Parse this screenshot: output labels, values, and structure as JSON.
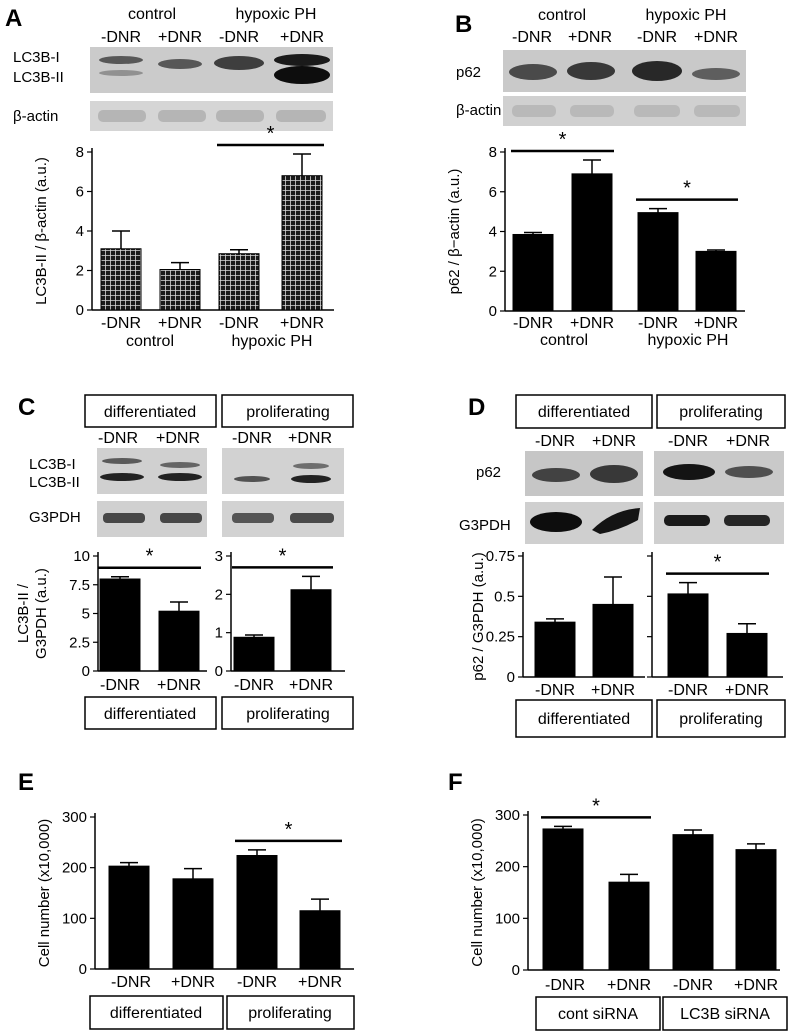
{
  "panels": {
    "A": {
      "letter": "A",
      "group_labels": [
        "control",
        "hypoxic PH"
      ],
      "conditions": [
        "-DNR",
        "+DNR",
        "-DNR",
        "+DNR"
      ],
      "blot_labels": [
        "LC3B-I",
        "LC3B-II",
        "β-actin"
      ],
      "significance": "*"
    },
    "B": {
      "letter": "B",
      "group_labels": [
        "control",
        "hypoxic PH"
      ],
      "conditions": [
        "-DNR",
        "+DNR",
        "-DNR",
        "+DNR"
      ],
      "blot_labels": [
        "p62",
        "β-actin"
      ],
      "significance": "*"
    },
    "C": {
      "letter": "C",
      "box_labels": [
        "differentiated",
        "proliferating"
      ],
      "conditions": [
        "-DNR",
        "+DNR",
        "-DNR",
        "+DNR"
      ],
      "blot_labels": [
        "LC3B-I",
        "LC3B-II",
        "G3PDH"
      ],
      "significance": "*"
    },
    "D": {
      "letter": "D",
      "box_labels": [
        "differentiated",
        "proliferating"
      ],
      "conditions": [
        "-DNR",
        "+DNR",
        "-DNR",
        "+DNR"
      ],
      "blot_labels": [
        "p62",
        "G3PDH"
      ],
      "significance": "*"
    },
    "E": {
      "letter": "E",
      "significance": "*"
    },
    "F": {
      "letter": "F",
      "significance": "*"
    }
  },
  "chart_data": [
    {
      "id": "A",
      "type": "bar",
      "pattern": "grid",
      "ylabel": "LC3B-II / β-actin (a.u.)",
      "yticks": [
        0,
        2,
        4,
        6,
        8
      ],
      "ylim": [
        0,
        8
      ],
      "categories": [
        "-DNR",
        "+DNR",
        "-DNR",
        "+DNR"
      ],
      "groups": [
        "control",
        "hypoxic PH"
      ],
      "values": [
        3.1,
        2.05,
        2.85,
        6.8
      ],
      "errors": [
        0.9,
        0.35,
        0.2,
        1.1
      ],
      "significance": [
        {
          "from": 2,
          "to": 3,
          "label": "*"
        }
      ]
    },
    {
      "id": "B",
      "type": "bar",
      "ylabel": "p62 / β−actin (a.u.)",
      "yticks": [
        0,
        2,
        4,
        6,
        8
      ],
      "ylim": [
        0,
        8
      ],
      "categories": [
        "-DNR",
        "+DNR",
        "-DNR",
        "+DNR"
      ],
      "groups": [
        "control",
        "hypoxic PH"
      ],
      "values": [
        3.85,
        6.9,
        4.95,
        3.0
      ],
      "errors": [
        0.1,
        0.7,
        0.2,
        0.07
      ],
      "significance": [
        {
          "from": 0,
          "to": 1,
          "label": "*"
        },
        {
          "from": 2,
          "to": 3,
          "label": "*"
        }
      ]
    },
    {
      "id": "C1",
      "type": "bar",
      "ylabel_lines": [
        "LC3B-II /",
        "G3PDH (a.u.)"
      ],
      "yticks": [
        0,
        2.5,
        5,
        7.5,
        10
      ],
      "ytick_labels": [
        "0",
        "2.5",
        "5",
        "7.5",
        "10"
      ],
      "ylim": [
        0,
        10
      ],
      "categories": [
        "-DNR",
        "+DNR"
      ],
      "group": "differentiated",
      "values": [
        8.0,
        5.2
      ],
      "errors": [
        0.2,
        0.8
      ],
      "significance": [
        {
          "from": 0,
          "to": 1,
          "label": "*"
        }
      ]
    },
    {
      "id": "C2",
      "type": "bar",
      "yticks": [
        0,
        1,
        2,
        3
      ],
      "ytick_labels": [
        "0",
        "1",
        "2",
        "3"
      ],
      "ylim": [
        0,
        3
      ],
      "categories": [
        "-DNR",
        "+DNR"
      ],
      "group": "proliferating",
      "values": [
        0.88,
        2.12
      ],
      "errors": [
        0.06,
        0.35
      ],
      "significance": [
        {
          "from": 0,
          "to": 1,
          "label": "*"
        }
      ]
    },
    {
      "id": "D1",
      "type": "bar",
      "ylabel": "p62 / G3PDH (a.u.)",
      "yticks": [
        0,
        0.25,
        0.5,
        0.75
      ],
      "ytick_labels": [
        "0",
        "0.25",
        "0.5",
        "0.75"
      ],
      "ylim": [
        0,
        0.75
      ],
      "categories": [
        "-DNR",
        "+DNR"
      ],
      "group": "differentiated",
      "values": [
        0.34,
        0.45
      ],
      "errors": [
        0.02,
        0.17
      ]
    },
    {
      "id": "D2",
      "type": "bar",
      "yticks": [
        0,
        0.25,
        0.5,
        0.75
      ],
      "ylim": [
        0,
        0.75
      ],
      "categories": [
        "-DNR",
        "+DNR"
      ],
      "group": "proliferating",
      "values": [
        0.515,
        0.27
      ],
      "errors": [
        0.07,
        0.06
      ],
      "significance": [
        {
          "from": 0,
          "to": 1,
          "label": "*"
        }
      ]
    },
    {
      "id": "E",
      "type": "bar",
      "ylabel": "Cell number (x10,000)",
      "yticks": [
        0,
        100,
        200,
        300
      ],
      "ylim": [
        0,
        300
      ],
      "categories": [
        "-DNR",
        "+DNR",
        "-DNR",
        "+DNR"
      ],
      "groups": [
        "differentiated",
        "proliferating"
      ],
      "values": [
        203,
        178,
        224,
        115
      ],
      "errors": [
        7,
        20,
        11,
        23
      ],
      "significance": [
        {
          "from": 2,
          "to": 3,
          "label": "*"
        }
      ]
    },
    {
      "id": "F",
      "type": "bar",
      "ylabel": "Cell number (x10,000)",
      "yticks": [
        0,
        100,
        200,
        300
      ],
      "ylim": [
        0,
        300
      ],
      "categories": [
        "-DNR",
        "+DNR",
        "-DNR",
        "+DNR"
      ],
      "groups": [
        "cont siRNA",
        "LC3B siRNA"
      ],
      "values": [
        273,
        170,
        262,
        233
      ],
      "errors": [
        5,
        15,
        9,
        11
      ],
      "significance": [
        {
          "from": 0,
          "to": 1,
          "label": "*"
        }
      ]
    }
  ]
}
